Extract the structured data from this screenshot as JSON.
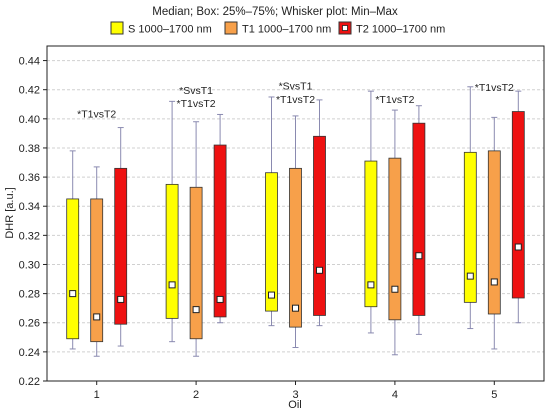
{
  "chart_data": {
    "type": "box",
    "title": "Median; Box: 25%–75%; Whisker plot: Min–Max",
    "xlabel": "Oil",
    "ylabel": "DHR [a.u.]",
    "ylim": [
      0.22,
      0.45
    ],
    "yticks": [
      "0.22",
      "0.24",
      "0.26",
      "0.28",
      "0.30",
      "0.32",
      "0.34",
      "0.36",
      "0.38",
      "0.40",
      "0.42",
      "0.44"
    ],
    "categories": [
      "1",
      "2",
      "3",
      "4",
      "5"
    ],
    "grid": true,
    "legend_position": "top",
    "series": [
      {
        "name": "S 1000–1700 nm",
        "color": "#ffff00",
        "boxes": [
          {
            "min": 0.242,
            "q1": 0.249,
            "median": 0.28,
            "q3": 0.345,
            "max": 0.378
          },
          {
            "min": 0.247,
            "q1": 0.263,
            "median": 0.286,
            "q3": 0.355,
            "max": 0.412
          },
          {
            "min": 0.258,
            "q1": 0.268,
            "median": 0.279,
            "q3": 0.363,
            "max": 0.415
          },
          {
            "min": 0.253,
            "q1": 0.271,
            "median": 0.286,
            "q3": 0.371,
            "max": 0.419
          },
          {
            "min": 0.256,
            "q1": 0.274,
            "median": 0.292,
            "q3": 0.377,
            "max": 0.422
          }
        ]
      },
      {
        "name": "T1 1000–1700 nm",
        "color": "#f7a04a",
        "boxes": [
          {
            "min": 0.237,
            "q1": 0.247,
            "median": 0.264,
            "q3": 0.345,
            "max": 0.367
          },
          {
            "min": 0.237,
            "q1": 0.249,
            "median": 0.269,
            "q3": 0.353,
            "max": 0.398
          },
          {
            "min": 0.243,
            "q1": 0.257,
            "median": 0.27,
            "q3": 0.366,
            "max": 0.402
          },
          {
            "min": 0.238,
            "q1": 0.262,
            "median": 0.283,
            "q3": 0.373,
            "max": 0.406
          },
          {
            "min": 0.242,
            "q1": 0.266,
            "median": 0.288,
            "q3": 0.378,
            "max": 0.401
          }
        ]
      },
      {
        "name": "T2 1000–1700 nm",
        "color": "#ee1111",
        "boxes": [
          {
            "min": 0.244,
            "q1": 0.259,
            "median": 0.276,
            "q3": 0.366,
            "max": 0.394
          },
          {
            "min": 0.26,
            "q1": 0.264,
            "median": 0.276,
            "q3": 0.382,
            "max": 0.403
          },
          {
            "min": 0.258,
            "q1": 0.265,
            "median": 0.296,
            "q3": 0.388,
            "max": 0.413
          },
          {
            "min": 0.252,
            "q1": 0.265,
            "median": 0.306,
            "q3": 0.397,
            "max": 0.409
          },
          {
            "min": 0.26,
            "q1": 0.277,
            "median": 0.312,
            "q3": 0.405,
            "max": 0.419
          }
        ]
      }
    ],
    "annotations": [
      {
        "text": "*T1vsT2",
        "category": 0,
        "y": 0.401
      },
      {
        "text": "*SvsT1",
        "category": 1,
        "y": 0.417
      },
      {
        "text": "*T1vsT2",
        "category": 1,
        "y": 0.408
      },
      {
        "text": "*SvsT1",
        "category": 2,
        "y": 0.42
      },
      {
        "text": "*T1vsT2",
        "category": 2,
        "y": 0.411
      },
      {
        "text": "*T1vsT2",
        "category": 3,
        "y": 0.411
      },
      {
        "text": "*T1vsT2",
        "category": 4,
        "y": 0.419
      }
    ]
  }
}
